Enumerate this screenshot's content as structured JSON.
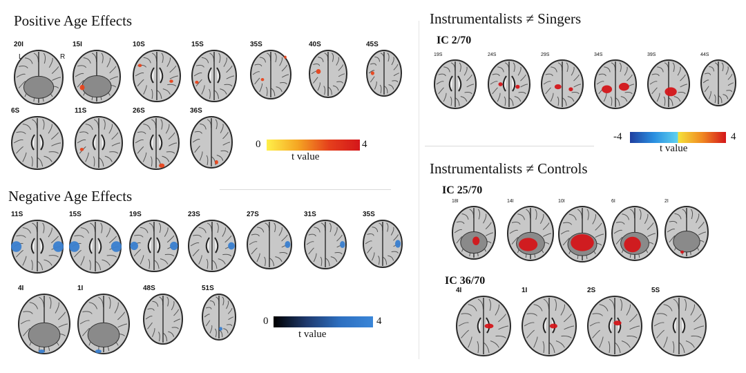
{
  "positive": {
    "title": "Positive Age Effects",
    "row1": [
      "20I",
      "15I",
      "10S",
      "15S",
      "35S",
      "40S",
      "45S"
    ],
    "row2": [
      "6S",
      "11S",
      "26S",
      "36S"
    ],
    "orient_left": "L",
    "orient_right": "R",
    "scale_min": "0",
    "scale_max": "4",
    "scale_label": "t value",
    "colors": [
      "#fff04a",
      "#f5a623",
      "#e5401c",
      "#d4161a"
    ]
  },
  "negative": {
    "title": "Negative Age Effects",
    "row1": [
      "11S",
      "15S",
      "19S",
      "23S",
      "27S",
      "31S",
      "35S"
    ],
    "row2": [
      "4I",
      "1I",
      "48S",
      "51S"
    ],
    "scale_min": "0",
    "scale_max": "4",
    "scale_label": "t value",
    "colors": [
      "#000000",
      "#1f3a6e",
      "#2d6fc0",
      "#3a86d8"
    ]
  },
  "singers": {
    "title": "Instrumentalists ≠ Singers",
    "ic": "IC 2/70",
    "slices": [
      "19S",
      "24S",
      "29S",
      "34S",
      "39S",
      "44S"
    ],
    "scale_min": "-4",
    "scale_max": "4",
    "scale_label": "t value",
    "colors": [
      "#1f3fa0",
      "#2a8fe0",
      "#5fd2f0",
      "#f5e23a",
      "#f08a22",
      "#d4161a"
    ]
  },
  "controls": {
    "title": "Instrumentalists ≠ Controls",
    "ic1": "IC 25/70",
    "slices1": [
      "18I",
      "14I",
      "10I",
      "6I",
      "2I"
    ],
    "ic2": "IC 36/70",
    "slices2": [
      "4I",
      "1I",
      "2S",
      "5S"
    ]
  }
}
